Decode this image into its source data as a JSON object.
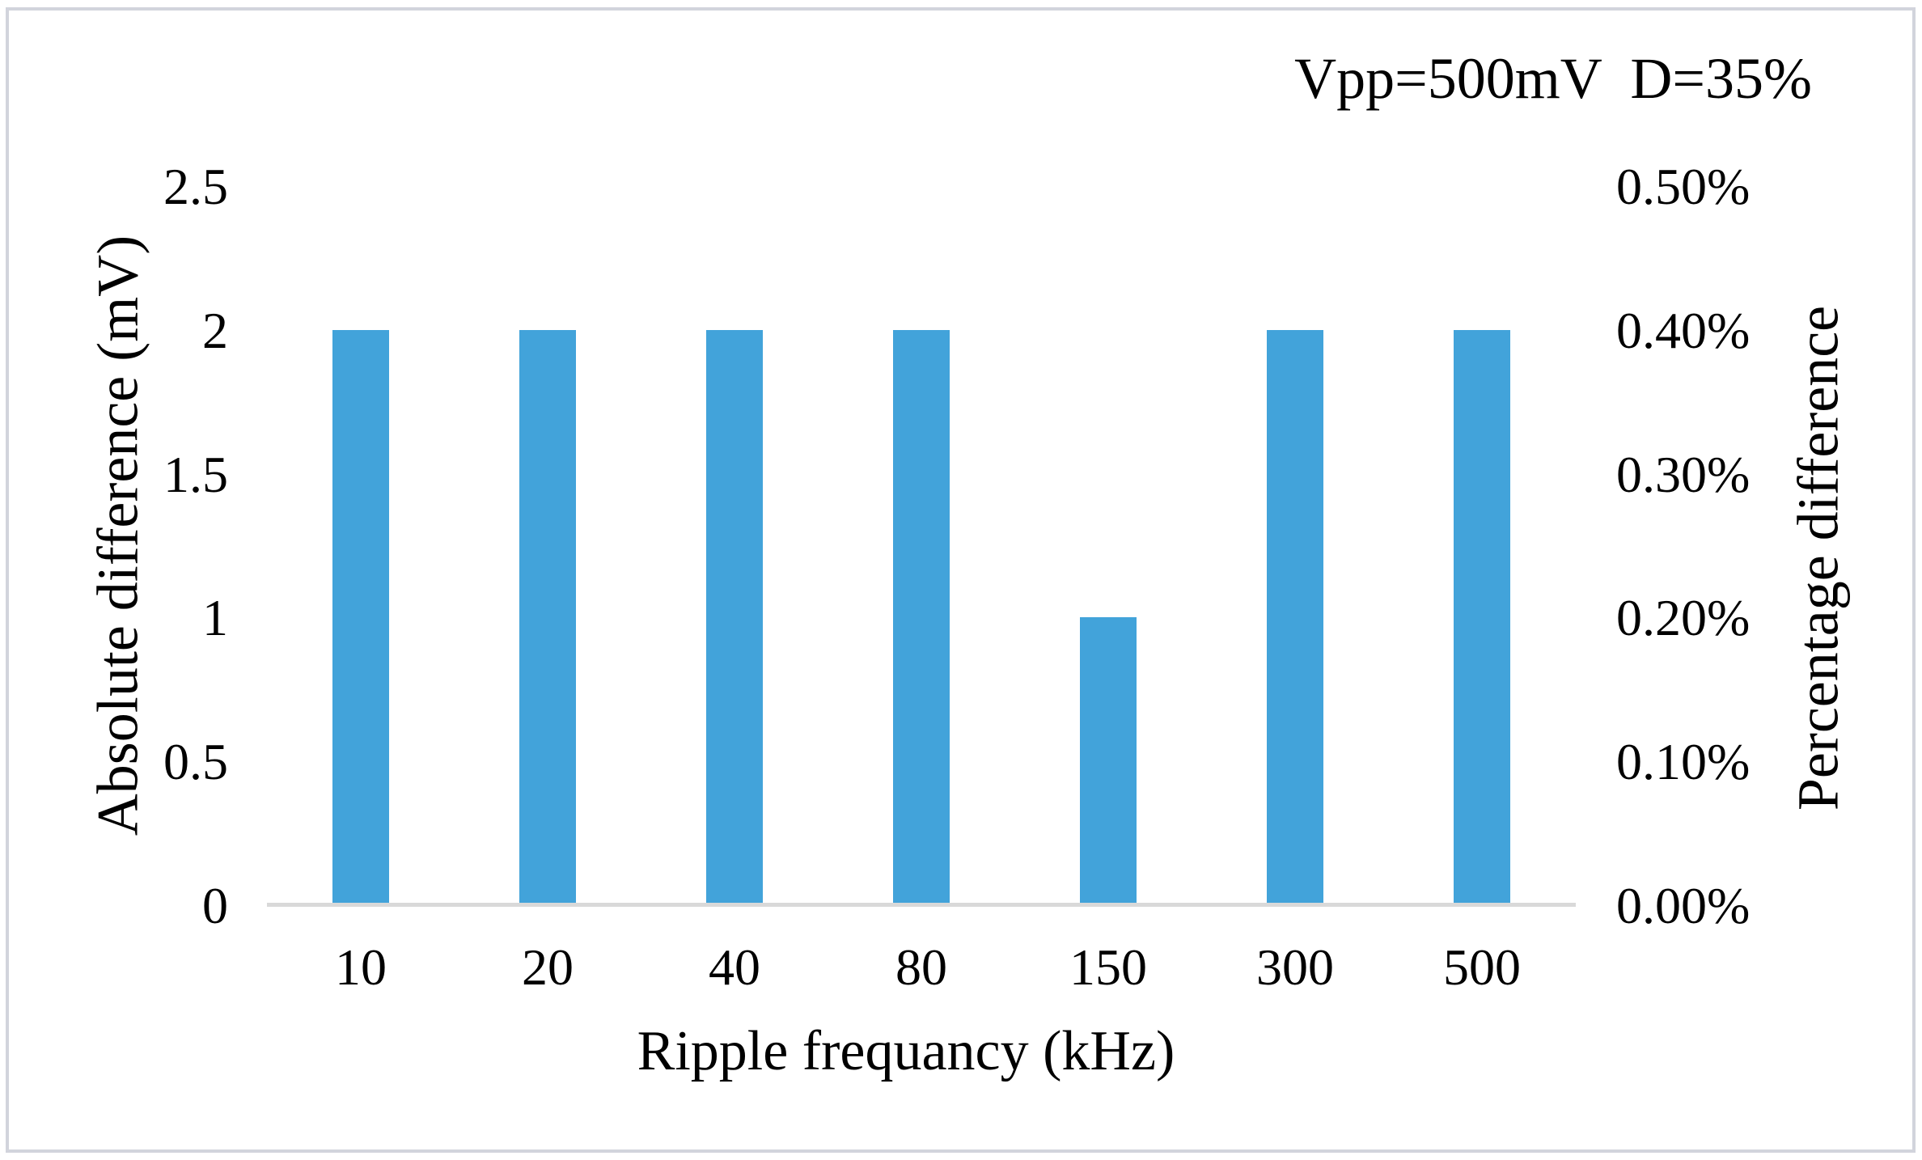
{
  "chart_data": {
    "type": "bar",
    "title": "Vpp=500mV  D=35%",
    "xlabel": "Ripple frequancy (kHz)",
    "ylabel_left": "Absolute difference (mV)",
    "ylabel_right": "Percentage difference",
    "categories": [
      "10",
      "20",
      "40",
      "80",
      "150",
      "300",
      "500"
    ],
    "series": [
      {
        "name": "Absolute difference (mV)",
        "values": [
          2,
          2,
          2,
          2,
          1,
          2,
          2
        ]
      }
    ],
    "series_right_equivalent": {
      "name": "Percentage difference",
      "values_percent": [
        "0.40%",
        "0.40%",
        "0.40%",
        "0.40%",
        "0.20%",
        "0.40%",
        "0.40%"
      ]
    },
    "left_axis": {
      "min": 0,
      "max": 2.5,
      "ticks": [
        "2.5",
        "2",
        "1.5",
        "1",
        "0.5",
        "0"
      ]
    },
    "right_axis": {
      "min": "0.00%",
      "max": "0.50%",
      "ticks": [
        "0.50%",
        "0.40%",
        "0.30%",
        "0.20%",
        "0.10%",
        "0.00%"
      ]
    },
    "grid": false,
    "legend": false,
    "bar_color": "#42a3da",
    "axis_line_color": "#d9d9d9"
  },
  "figure": {
    "background": "#ffffff",
    "border_color": "#d2d4dc",
    "text_color": "#000000"
  }
}
